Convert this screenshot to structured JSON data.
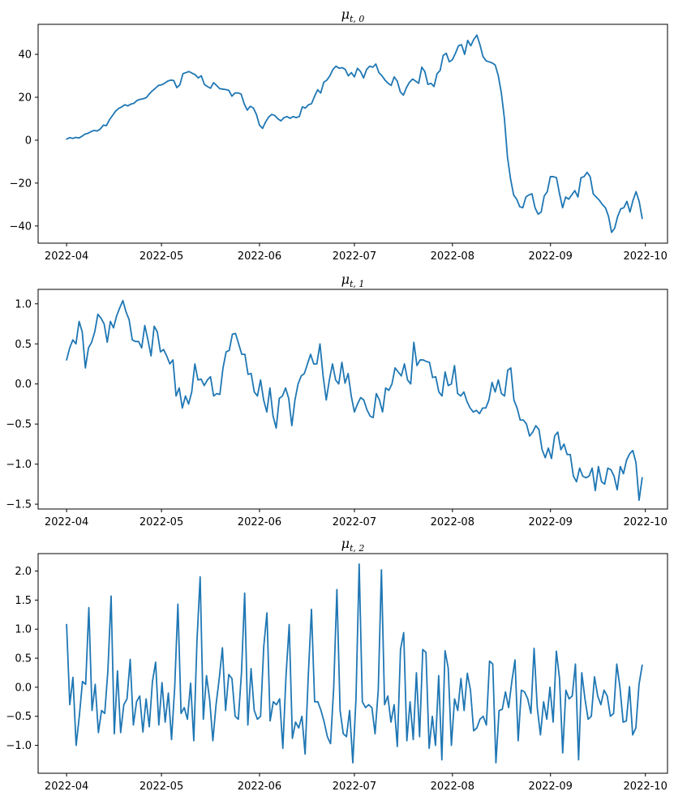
{
  "chart_data": [
    {
      "type": "line",
      "title": "μ_{t,0}",
      "title_main": "μ",
      "title_sub": "t, 0",
      "xlabel": "",
      "ylabel": "",
      "x_start": "2022-04-01",
      "x_end": "2022-09-30",
      "xlim": [
        "2022-03-23",
        "2022-10-08"
      ],
      "x_ticks": [
        "2022-04-01",
        "2022-05-01",
        "2022-06-01",
        "2022-07-01",
        "2022-08-01",
        "2022-09-01",
        "2022-10-01"
      ],
      "x_tick_labels": [
        "2022-04",
        "2022-05",
        "2022-06",
        "2022-07",
        "2022-08",
        "2022-09",
        "2022-10"
      ],
      "ylim": [
        -48,
        54
      ],
      "y_ticks": [
        -40,
        -20,
        0,
        20,
        40
      ],
      "y_tick_labels": [
        "−40",
        "−20",
        "0",
        "20",
        "40"
      ],
      "grid": false,
      "line_color": "#1f77b4",
      "series": [
        {
          "values": [
            0.5,
            1.2,
            0.8,
            1.3,
            1.0,
            1.8,
            2.8,
            3.2,
            4.0,
            4.5,
            4.3,
            5.2,
            7.0,
            6.8,
            9.5,
            11.5,
            13.5,
            14.8,
            15.5,
            16.5,
            16.0,
            16.8,
            17.2,
            18.5,
            19.0,
            19.3,
            19.8,
            21.5,
            23.0,
            24.2,
            25.5,
            25.8,
            26.5,
            27.5,
            28.0,
            27.8,
            24.5,
            25.8,
            31.0,
            31.5,
            32.0,
            31.2,
            30.5,
            29.0,
            30.0,
            26.0,
            25.0,
            24.2,
            26.8,
            25.5,
            24.0,
            23.8,
            23.6,
            23.2,
            20.5,
            22.0,
            22.0,
            21.5,
            17.0,
            14.0,
            15.8,
            15.0,
            12.0,
            7.0,
            5.5,
            8.5,
            10.8,
            12.0,
            11.5,
            10.0,
            9.0,
            10.5,
            11.0,
            10.2,
            11.0,
            10.5,
            11.0,
            15.5,
            15.0,
            16.5,
            17.0,
            20.5,
            23.5,
            22.0,
            27.0,
            28.0,
            30.0,
            33.0,
            34.5,
            33.5,
            33.8,
            33.0,
            30.0,
            31.5,
            29.5,
            33.5,
            32.0,
            29.0,
            33.0,
            34.5,
            34.0,
            35.5,
            31.5,
            30.0,
            28.0,
            26.5,
            25.5,
            29.5,
            27.5,
            22.5,
            21.0,
            24.5,
            27.0,
            28.5,
            27.5,
            26.5,
            34.0,
            32.0,
            26.0,
            26.5,
            25.0,
            31.0,
            32.5,
            39.5,
            40.5,
            36.5,
            37.5,
            40.5,
            44.0,
            44.5,
            40.0,
            46.5,
            44.0,
            47.0,
            49.0,
            44.5,
            39.0,
            37.0,
            36.5,
            36.0,
            35.0,
            30.0,
            22.0,
            10.0,
            -8.0,
            -18.0,
            -25.5,
            -27.5,
            -31.0,
            -31.5,
            -26.5,
            -25.5,
            -25.0,
            -31.5,
            -34.5,
            -33.5,
            -26.0,
            -24.0,
            -17.0,
            -17.0,
            -17.5,
            -25.0,
            -31.5,
            -26.5,
            -27.5,
            -25.5,
            -23.5,
            -26.5,
            -17.5,
            -17.0,
            -15.0,
            -17.0,
            -25.0,
            -26.5,
            -28.0,
            -30.0,
            -31.5,
            -35.5,
            -43.0,
            -41.0,
            -35.5,
            -32.0,
            -31.5,
            -28.5,
            -33.5,
            -28.0,
            -24.0,
            -28.5,
            -36.5
          ]
        }
      ]
    },
    {
      "type": "line",
      "title": "μ_{t,1}",
      "title_main": "μ",
      "title_sub": "t, 1",
      "xlabel": "",
      "ylabel": "",
      "x_start": "2022-04-01",
      "x_end": "2022-09-30",
      "xlim": [
        "2022-03-23",
        "2022-10-08"
      ],
      "x_ticks": [
        "2022-04-01",
        "2022-05-01",
        "2022-06-01",
        "2022-07-01",
        "2022-08-01",
        "2022-09-01",
        "2022-10-01"
      ],
      "x_tick_labels": [
        "2022-04",
        "2022-05",
        "2022-06",
        "2022-07",
        "2022-08",
        "2022-09",
        "2022-10"
      ],
      "ylim": [
        -1.56,
        1.18
      ],
      "y_ticks": [
        -1.5,
        -1.0,
        -0.5,
        0.0,
        0.5,
        1.0
      ],
      "y_tick_labels": [
        "−1.5",
        "−1.0",
        "−0.5",
        "0.0",
        "0.5",
        "1.0"
      ],
      "grid": false,
      "line_color": "#1f77b4",
      "series": [
        {
          "values": [
            0.3,
            0.45,
            0.55,
            0.5,
            0.78,
            0.65,
            0.2,
            0.45,
            0.52,
            0.65,
            0.87,
            0.82,
            0.75,
            0.52,
            0.78,
            0.7,
            0.85,
            0.95,
            1.04,
            0.9,
            0.8,
            0.55,
            0.53,
            0.53,
            0.45,
            0.73,
            0.55,
            0.35,
            0.72,
            0.65,
            0.4,
            0.43,
            0.35,
            0.25,
            0.3,
            -0.15,
            -0.05,
            -0.3,
            -0.15,
            -0.25,
            -0.1,
            0.25,
            0.05,
            0.06,
            -0.02,
            0.05,
            0.09,
            -0.15,
            -0.12,
            -0.13,
            0.2,
            0.4,
            0.42,
            0.62,
            0.63,
            0.5,
            0.37,
            0.37,
            0.12,
            0.13,
            -0.1,
            -0.15,
            0.05,
            -0.2,
            -0.35,
            -0.05,
            -0.4,
            -0.55,
            -0.18,
            -0.15,
            -0.05,
            -0.18,
            -0.52,
            -0.2,
            0.0,
            0.1,
            0.13,
            0.25,
            0.37,
            0.25,
            0.25,
            0.5,
            0.1,
            -0.2,
            0.05,
            0.25,
            0.05,
            0.0,
            0.27,
            0.01,
            0.13,
            -0.15,
            -0.35,
            -0.25,
            -0.17,
            -0.2,
            -0.32,
            -0.4,
            -0.42,
            -0.12,
            -0.2,
            -0.35,
            -0.05,
            -0.08,
            0.0,
            0.2,
            0.15,
            0.1,
            0.25,
            0.05,
            0.0,
            0.52,
            0.23,
            0.3,
            0.3,
            0.28,
            0.27,
            0.08,
            0.09,
            -0.1,
            -0.15,
            0.15,
            -0.02,
            0.0,
            0.23,
            -0.12,
            -0.15,
            -0.1,
            -0.22,
            -0.3,
            -0.35,
            -0.33,
            -0.37,
            -0.3,
            -0.3,
            -0.2,
            0.02,
            -0.1,
            0.05,
            -0.12,
            -0.15,
            0.17,
            0.2,
            -0.2,
            -0.3,
            -0.45,
            -0.45,
            -0.5,
            -0.65,
            -0.6,
            -0.52,
            -0.57,
            -0.82,
            -0.92,
            -0.8,
            -0.93,
            -0.65,
            -0.6,
            -0.82,
            -0.75,
            -0.88,
            -0.88,
            -1.15,
            -1.22,
            -1.05,
            -1.15,
            -1.17,
            -1.15,
            -1.05,
            -1.33,
            -1.03,
            -1.22,
            -1.25,
            -1.05,
            -1.07,
            -1.15,
            -1.32,
            -1.03,
            -1.12,
            -0.95,
            -0.87,
            -0.83,
            -0.98,
            -1.45,
            -1.17
          ]
        }
      ]
    },
    {
      "type": "line",
      "title": "μ_{t,2}",
      "title_main": "μ",
      "title_sub": "t, 2",
      "xlabel": "",
      "ylabel": "",
      "x_start": "2022-04-01",
      "x_end": "2022-09-30",
      "xlim": [
        "2022-03-23",
        "2022-10-08"
      ],
      "x_ticks": [
        "2022-04-01",
        "2022-05-01",
        "2022-06-01",
        "2022-07-01",
        "2022-08-01",
        "2022-09-01",
        "2022-10-01"
      ],
      "x_tick_labels": [
        "2022-04",
        "2022-05",
        "2022-06",
        "2022-07",
        "2022-08",
        "2022-09",
        "2022-10"
      ],
      "ylim": [
        -1.48,
        2.3
      ],
      "y_ticks": [
        -1.0,
        -0.5,
        0.0,
        0.5,
        1.0,
        1.5,
        2.0
      ],
      "y_tick_labels": [
        "−1.0",
        "−0.5",
        "0.0",
        "0.5",
        "1.0",
        "1.5",
        "2.0"
      ],
      "grid": false,
      "line_color": "#1f77b4",
      "series": [
        {
          "values": [
            1.08,
            -0.3,
            0.17,
            -1.0,
            -0.5,
            0.1,
            0.05,
            1.37,
            -0.4,
            0.05,
            -0.78,
            -0.4,
            -0.45,
            0.3,
            1.57,
            -0.8,
            0.28,
            -0.78,
            -0.3,
            -0.2,
            0.48,
            -0.65,
            -0.25,
            -0.15,
            -0.77,
            -0.2,
            -0.68,
            0.1,
            0.43,
            -0.65,
            0.08,
            -0.6,
            -0.1,
            -0.9,
            0.0,
            1.43,
            -0.45,
            -0.35,
            -0.55,
            0.07,
            -0.92,
            0.8,
            1.9,
            -0.55,
            0.2,
            -0.22,
            -0.92,
            -0.3,
            0.15,
            0.68,
            -0.4,
            0.22,
            0.15,
            -0.5,
            -0.55,
            0.25,
            1.62,
            -0.65,
            0.32,
            -0.4,
            -0.55,
            -0.5,
            0.7,
            1.28,
            -0.58,
            -0.25,
            -0.3,
            -0.2,
            -1.05,
            0.2,
            1.08,
            -0.88,
            -0.6,
            -0.7,
            -0.5,
            -1.15,
            0.2,
            1.34,
            -0.25,
            -0.25,
            -0.4,
            -0.6,
            -0.85,
            -0.97,
            0.0,
            1.68,
            -0.4,
            -0.8,
            -0.85,
            -0.4,
            -1.3,
            -0.2,
            2.12,
            -0.25,
            -0.35,
            -0.3,
            -0.35,
            -0.8,
            -0.05,
            2.02,
            -0.3,
            -0.15,
            -0.6,
            -0.3,
            -1.02,
            0.65,
            0.94,
            -0.92,
            -0.25,
            -0.9,
            0.25,
            -0.85,
            0.65,
            0.6,
            -1.05,
            -0.5,
            -1.0,
            0.2,
            -1.25,
            0.63,
            0.33,
            -1.0,
            -0.2,
            -0.4,
            0.15,
            -0.4,
            0.24,
            -0.05,
            -0.75,
            -0.7,
            -0.55,
            -0.5,
            -0.65,
            0.45,
            0.4,
            -1.3,
            -0.4,
            -0.38,
            -0.08,
            -0.35,
            0.1,
            0.47,
            -0.92,
            -0.05,
            -0.08,
            -0.2,
            -0.45,
            0.67,
            -0.35,
            -0.82,
            -0.25,
            -0.55,
            0.0,
            -0.6,
            0.62,
            0.15,
            -1.13,
            -0.05,
            -0.2,
            -0.15,
            0.4,
            -1.25,
            0.25,
            -0.2,
            -0.55,
            -0.5,
            0.18,
            -0.15,
            -0.3,
            -0.05,
            -0.15,
            -0.5,
            -0.45,
            0.4,
            0.0,
            -0.6,
            -0.58,
            0.01,
            -0.82,
            -0.7,
            0.05,
            0.38
          ]
        }
      ]
    }
  ]
}
